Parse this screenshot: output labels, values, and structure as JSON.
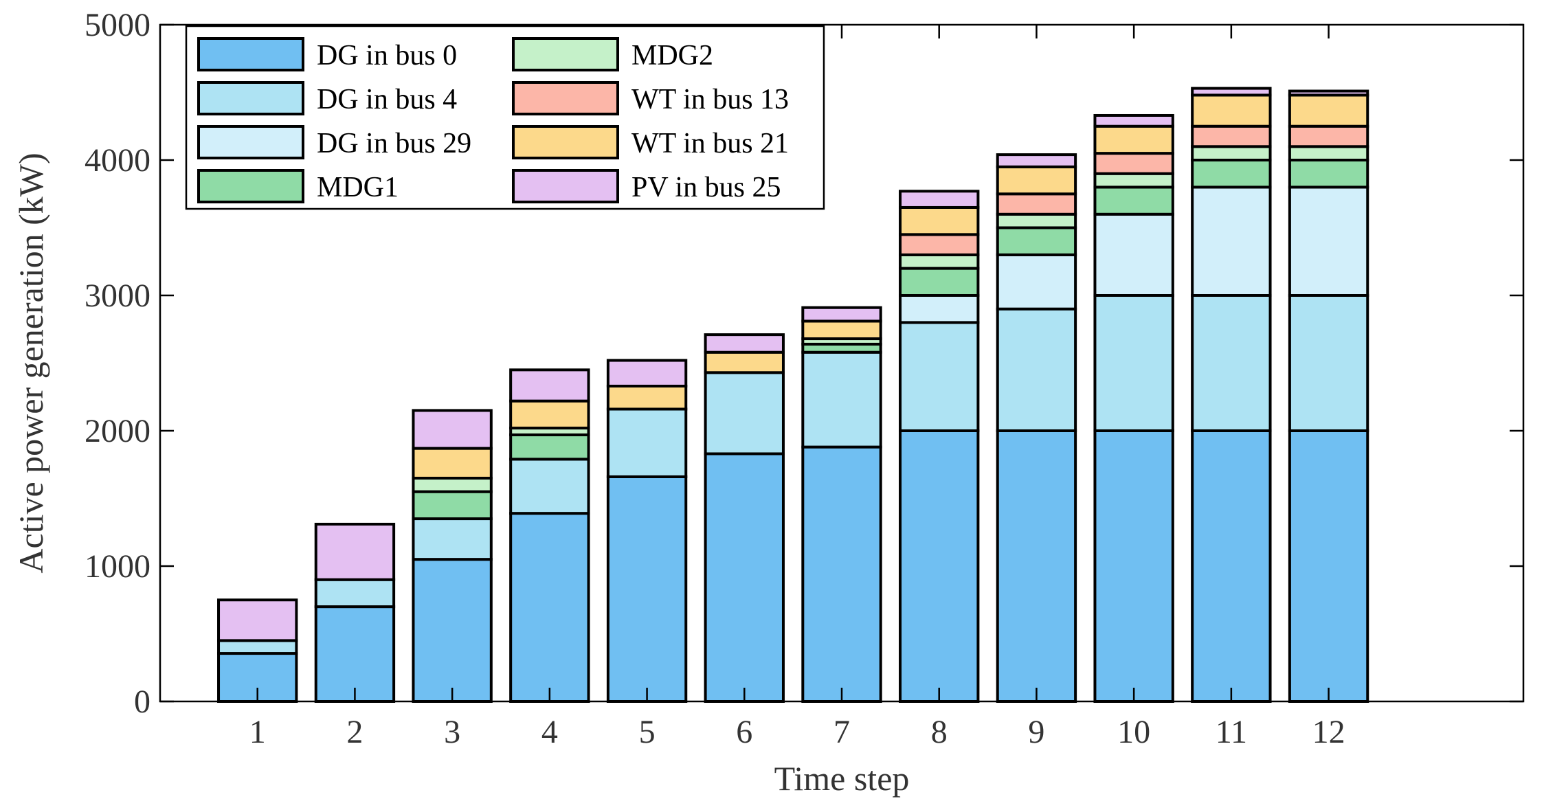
{
  "chart_data": {
    "type": "bar",
    "stacked": true,
    "title": "",
    "xlabel": "Time step",
    "ylabel": "Active power generation (kW)",
    "ylim": [
      0,
      5000
    ],
    "xlim": [
      0,
      14
    ],
    "yticks": [
      0,
      1000,
      2000,
      3000,
      4000,
      5000
    ],
    "grid": false,
    "legend_position": "top-left",
    "categories": [
      "1",
      "2",
      "3",
      "4",
      "5",
      "6",
      "7",
      "8",
      "9",
      "10",
      "11",
      "12"
    ],
    "series": [
      {
        "name": "DG in bus 0",
        "color": "#70BFF2",
        "values": [
          355,
          700,
          1050,
          1390,
          1660,
          1830,
          1880,
          2000,
          2000,
          2000,
          2000,
          2000
        ]
      },
      {
        "name": "DG in bus 4",
        "color": "#AEE3F3",
        "values": [
          95,
          200,
          300,
          400,
          500,
          600,
          700,
          800,
          900,
          1000,
          1000,
          1000
        ]
      },
      {
        "name": "DG in bus 29",
        "color": "#D2EFFA",
        "values": [
          0,
          0,
          0,
          0,
          0,
          0,
          0,
          200,
          400,
          600,
          800,
          800
        ]
      },
      {
        "name": "MDG1",
        "color": "#8FDBA6",
        "values": [
          0,
          0,
          200,
          180,
          0,
          0,
          60,
          200,
          200,
          200,
          200,
          200
        ]
      },
      {
        "name": "MDG2",
        "color": "#C5F1C9",
        "values": [
          0,
          0,
          100,
          50,
          0,
          0,
          40,
          100,
          100,
          100,
          100,
          100
        ]
      },
      {
        "name": "WT in bus 13",
        "color": "#FCB6A8",
        "values": [
          0,
          0,
          0,
          0,
          0,
          0,
          0,
          150,
          150,
          150,
          150,
          150
        ]
      },
      {
        "name": "WT in bus 21",
        "color": "#FCD98B",
        "values": [
          0,
          0,
          220,
          200,
          170,
          150,
          130,
          200,
          200,
          200,
          230,
          230
        ]
      },
      {
        "name": "PV in bus 25",
        "color": "#E4C0F2",
        "values": [
          300,
          410,
          280,
          230,
          190,
          130,
          100,
          120,
          90,
          80,
          50,
          30
        ]
      }
    ]
  }
}
